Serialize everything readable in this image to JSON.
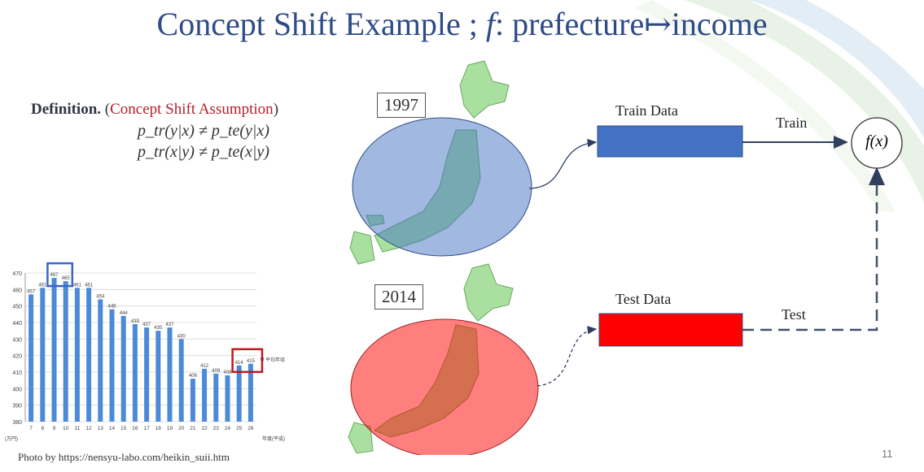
{
  "slide": {
    "title_prefix": "Concept Shift Example ; ",
    "title_f": "f",
    "title_suffix": ": prefecture↦income",
    "definition_label": "Definition.",
    "definition_open": " (",
    "definition_name": "Concept Shift Assumption",
    "definition_close": ")",
    "equation_1": "p_tr(y|x) ≠ p_te(y|x)",
    "equation_2": "p_tr(x|y) ≠ p_te(x|y)",
    "credit": "Photo by https://nensyu-labo.com/heikin_suii.htm",
    "page_number": "11"
  },
  "diagram": {
    "year_train": "1997",
    "year_test": "2014",
    "train_data_label": "Train Data",
    "test_data_label": "Test Data",
    "train_arrow_label": "Train",
    "test_arrow_label": "Test",
    "function_node": "f(x)",
    "colors": {
      "train": "#4472c4",
      "test": "#ff0000",
      "train_ellipse": "#8fa9db",
      "test_ellipse": "#f86a6a",
      "japan": "#a9e0a0"
    }
  },
  "chart_data": {
    "type": "bar",
    "categories": [
      "7",
      "8",
      "9",
      "10",
      "11",
      "12",
      "13",
      "14",
      "15",
      "16",
      "17",
      "18",
      "19",
      "20",
      "21",
      "22",
      "23",
      "24",
      "25",
      "26"
    ],
    "series": [
      {
        "name": "平均年収",
        "values": [
          457,
          461,
          467,
          465,
          461,
          461,
          454,
          448,
          444,
          439,
          437,
          435,
          437,
          430,
          406,
          412,
          409,
          408,
          414,
          415
        ]
      }
    ],
    "ylim": [
      380,
      470
    ],
    "yticks": [
      380,
      390,
      400,
      410,
      420,
      430,
      440,
      450,
      460,
      470
    ],
    "ylabel": "(万円)",
    "xlabel": "年度(平成)",
    "grid": true,
    "legend": "right",
    "highlight_boxes": [
      {
        "categories": [
          "9",
          "10"
        ],
        "color": "#3a66c4"
      },
      {
        "categories": [
          "25",
          "26"
        ],
        "color": "#c0181d"
      }
    ],
    "bar_color": "#4a8ad8"
  }
}
